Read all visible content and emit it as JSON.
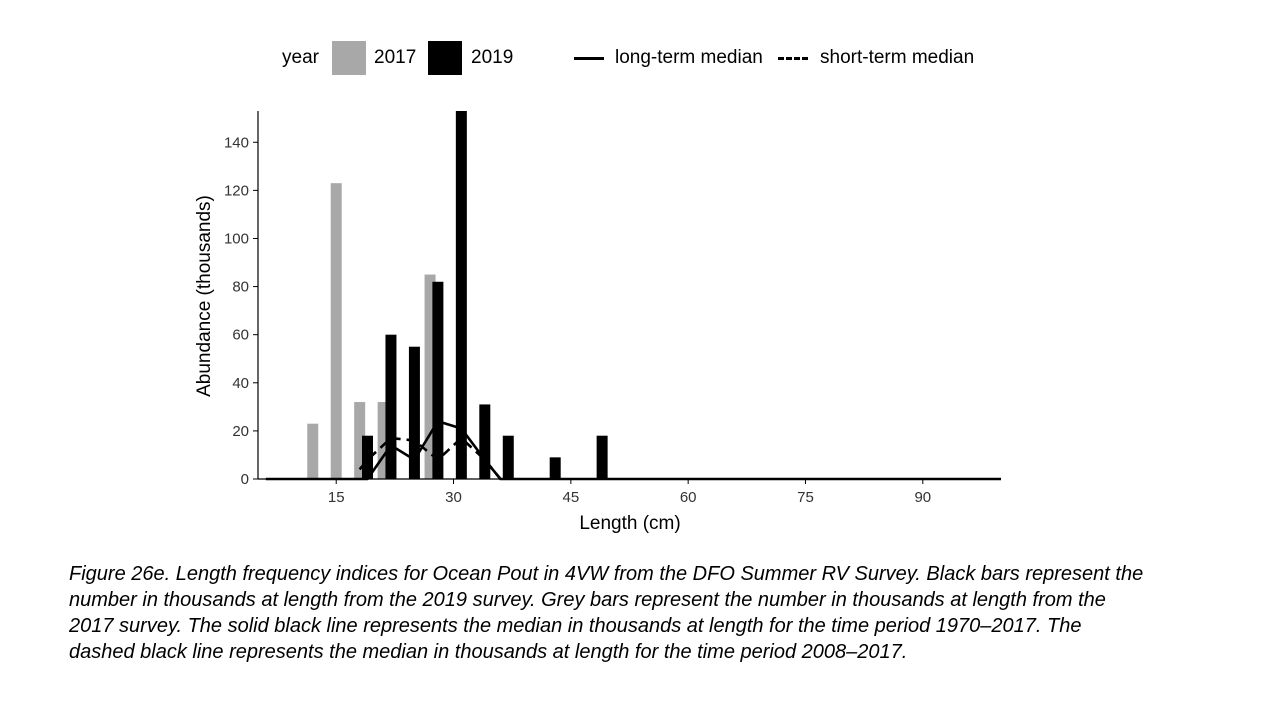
{
  "legend": {
    "title": "year",
    "entries": [
      {
        "label": "2017",
        "color": "#a8a8a8"
      },
      {
        "label": "2019",
        "color": "#000000"
      }
    ],
    "lines": [
      {
        "label": "long-term median",
        "style": "solid"
      },
      {
        "label": "short-term median",
        "style": "dashed"
      }
    ]
  },
  "caption": "Figure 26e. Length frequency indices for Ocean Pout in 4VW from the DFO Summer RV Survey. Black bars represent the number in thousands at length from the 2019 survey. Grey bars represent the number in thousands at length from the 2017 survey. The solid black line represents the median in thousands at length for the time period 1970–2017. The dashed black line represents the median in thousands at length for the time period 2008–2017.",
  "chart_data": {
    "type": "bar",
    "xlabel": "Length (cm)",
    "ylabel": "Abundance (thousands)",
    "xlim": [
      5,
      100
    ],
    "ylim": [
      0,
      153
    ],
    "xticks": [
      15,
      30,
      45,
      60,
      75,
      90
    ],
    "yticks": [
      0,
      20,
      40,
      60,
      80,
      100,
      120,
      140
    ],
    "grid": false,
    "legend_position": "top",
    "series": [
      {
        "name": "2017",
        "color": "#a8a8a8",
        "x": [
          12,
          15,
          18,
          21,
          27
        ],
        "values": [
          23,
          123,
          32,
          32,
          85
        ]
      },
      {
        "name": "2019",
        "color": "#000000",
        "x": [
          19,
          22,
          25,
          28,
          31,
          34,
          37,
          43,
          49
        ],
        "values": [
          18,
          60,
          55,
          82,
          153,
          31,
          18,
          9,
          18
        ]
      }
    ],
    "lines": [
      {
        "name": "long-term median",
        "style": "solid",
        "x": [
          6,
          19,
          22,
          25,
          28,
          31,
          34,
          36,
          37,
          43,
          49,
          100
        ],
        "y": [
          0,
          0,
          14,
          8,
          24,
          21,
          8,
          0,
          0,
          0,
          0,
          0
        ]
      },
      {
        "name": "short-term median",
        "style": "dashed",
        "x": [
          18,
          19,
          22,
          25,
          28,
          31,
          34,
          36
        ],
        "y": [
          4,
          8,
          17,
          16,
          8,
          17,
          8,
          0
        ]
      }
    ]
  }
}
